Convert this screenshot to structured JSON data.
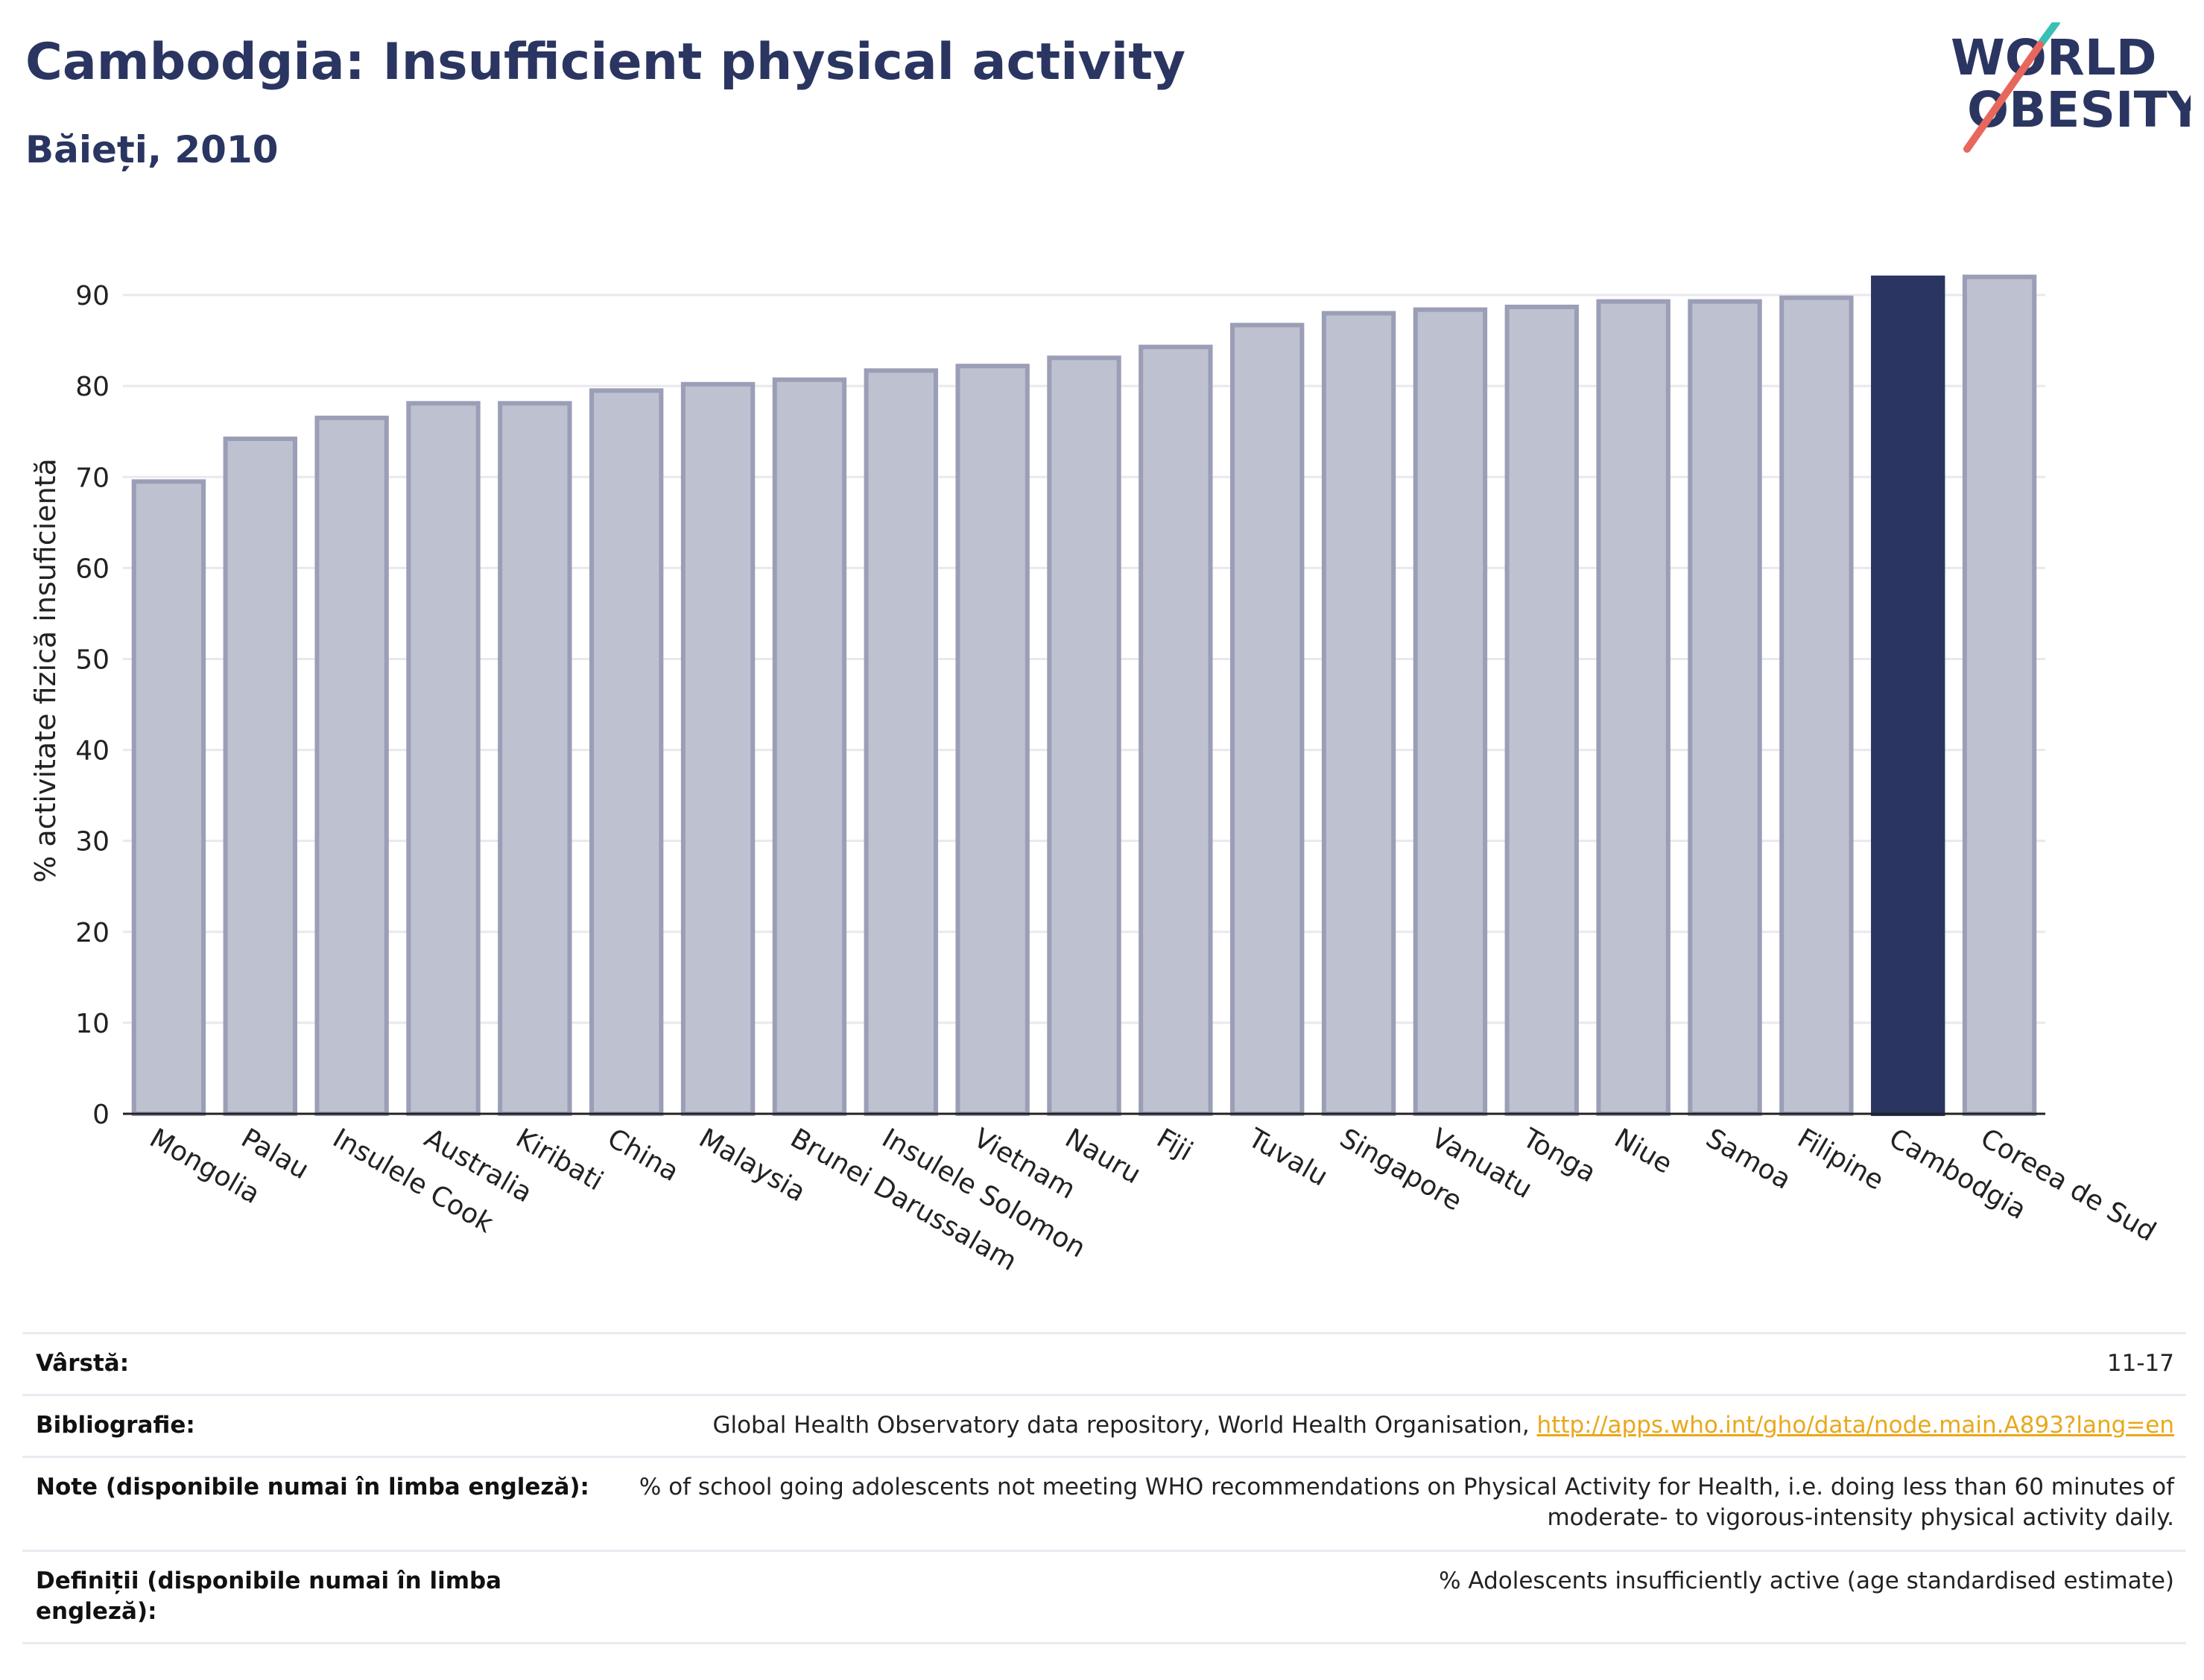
{
  "header": {
    "title": "Cambodgia: Insufficient physical activity",
    "subtitle": "Băieți, 2010"
  },
  "logo": {
    "line1": "WORLD",
    "line2": "OBESITY",
    "accent_teal": "#3bbfb5",
    "accent_red": "#e8675c",
    "color": "#2b3561"
  },
  "chart_data": {
    "type": "bar",
    "ylabel": "% activitate fizică insuficientă",
    "ylim": [
      0,
      95
    ],
    "yticks": [
      0,
      10,
      20,
      30,
      40,
      50,
      60,
      70,
      80,
      90
    ],
    "grid": true,
    "categories": [
      "Mongolia",
      "Palau",
      "Insulele Cook",
      "Australia",
      "Kiribati",
      "China",
      "Malaysia",
      "Brunei Darussalam",
      "Insulele Solomon",
      "Vietnam",
      "Nauru",
      "Fiji",
      "Tuvalu",
      "Singapore",
      "Vanuatu",
      "Tonga",
      "Niue",
      "Samoa",
      "Filipine",
      "Cambodgia",
      "Coreea de Sud"
    ],
    "values": [
      69.5,
      74.2,
      76.5,
      78.1,
      78.1,
      79.5,
      80.2,
      80.7,
      81.7,
      82.2,
      83.1,
      84.3,
      86.7,
      88.0,
      88.4,
      88.7,
      89.3,
      89.3,
      89.7,
      91.9,
      92.0
    ],
    "highlight": "Cambodgia",
    "colors": {
      "bar_fill": "#bec1cf",
      "bar_edge": "#9a9eb6",
      "highlight": "#2b3561",
      "grid": "#e8e8ee",
      "axis": "#222222"
    }
  },
  "info": {
    "age_label": "Vârstă:",
    "age_value": "11-17",
    "biblio_label": "Bibliografie:",
    "biblio_text": "Global Health Observatory data repository, World Health Organisation, ",
    "biblio_link": "http://apps.who.int/gho/data/node.main.A893?lang=en",
    "notes_label": "Note (disponibile numai în limba engleză):",
    "notes_line1": "% of school going adolescents not meeting WHO recommendations on Physical Activity for Health, i.e. doing less than 60 minutes of",
    "notes_line2": "moderate- to vigorous-intensity physical activity daily.",
    "defs_label_line1": "Definiții (disponibile numai în limba",
    "defs_label_line2": "engleză):",
    "defs_value": "% Adolescents insufficiently active (age standardised estimate)"
  }
}
